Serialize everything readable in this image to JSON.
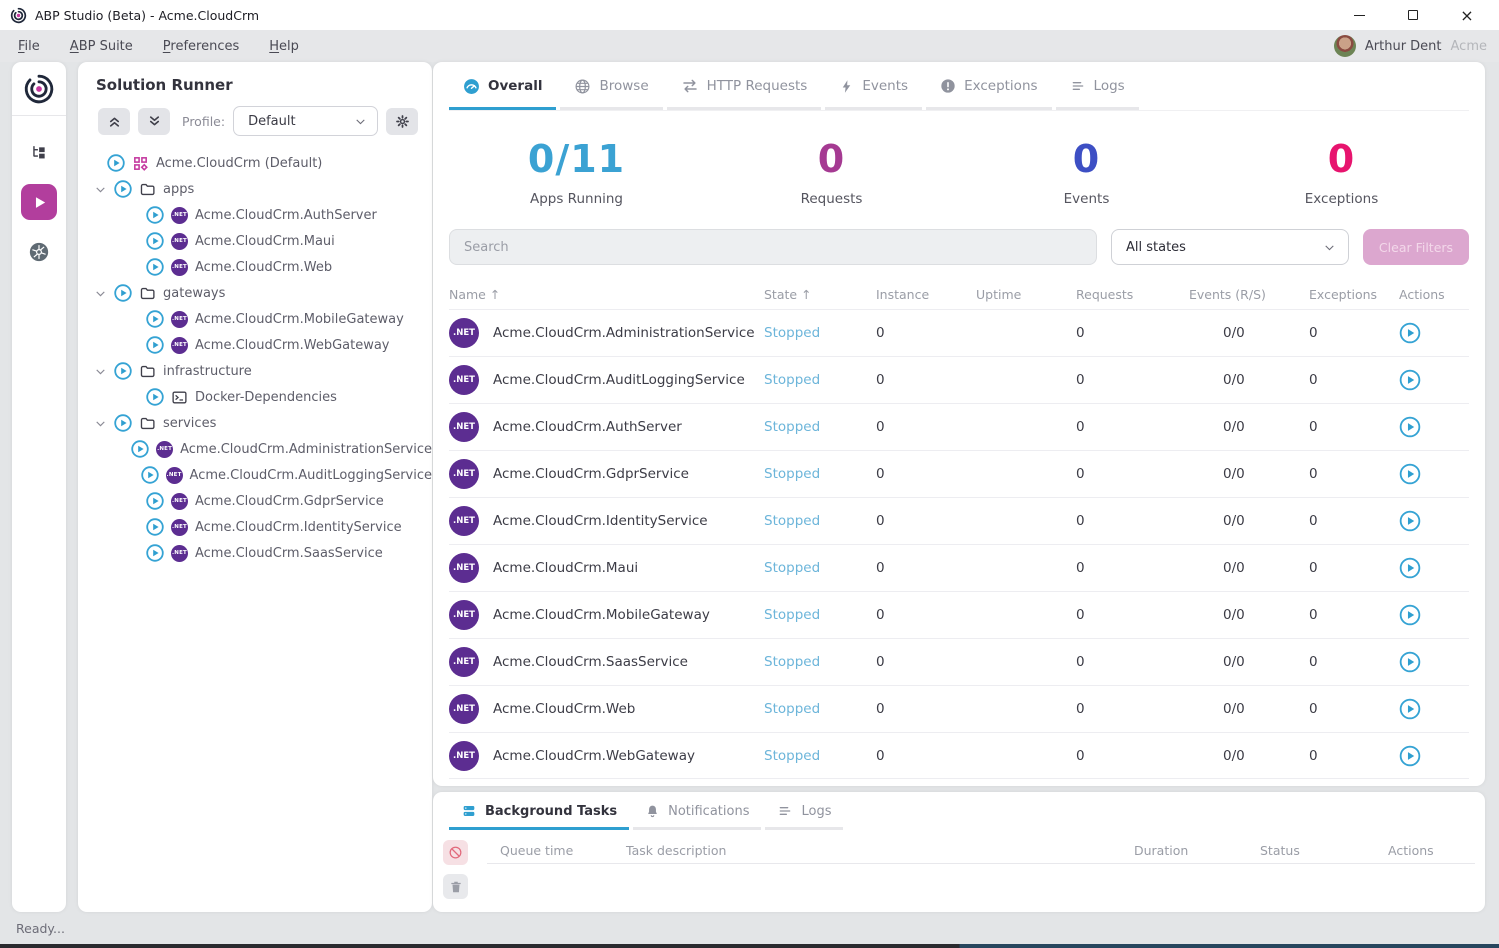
{
  "window": {
    "title": "ABP Studio (Beta) - Acme.CloudCrm"
  },
  "menu": {
    "items": [
      {
        "label": "File"
      },
      {
        "label": "ABP Suite"
      },
      {
        "label": "Preferences"
      },
      {
        "label": "Help"
      }
    ],
    "user": {
      "name": "Arthur Dent",
      "tenant": "Acme"
    }
  },
  "rail": {
    "items": [
      {
        "icon": "solution-explorer-icon",
        "active": false
      },
      {
        "icon": "solution-runner-icon",
        "active": true
      },
      {
        "icon": "kubernetes-icon",
        "active": false
      }
    ]
  },
  "solution_runner": {
    "title": "Solution Runner",
    "profile_label": "Profile:",
    "profile_value": "Default",
    "tree": [
      {
        "type": "root",
        "label": "Acme.CloudCrm (Default)"
      },
      {
        "type": "folder",
        "label": "apps",
        "expanded": true
      },
      {
        "type": "app",
        "label": "Acme.CloudCrm.AuthServer"
      },
      {
        "type": "app",
        "label": "Acme.CloudCrm.Maui"
      },
      {
        "type": "app",
        "label": "Acme.CloudCrm.Web"
      },
      {
        "type": "folder",
        "label": "gateways",
        "expanded": true
      },
      {
        "type": "app",
        "label": "Acme.CloudCrm.MobileGateway"
      },
      {
        "type": "app",
        "label": "Acme.CloudCrm.WebGateway"
      },
      {
        "type": "folder",
        "label": "infrastructure",
        "expanded": true
      },
      {
        "type": "docker",
        "label": "Docker-Dependencies"
      },
      {
        "type": "folder",
        "label": "services",
        "expanded": true
      },
      {
        "type": "app",
        "label": "Acme.CloudCrm.AdministrationService"
      },
      {
        "type": "app",
        "label": "Acme.CloudCrm.AuditLoggingService"
      },
      {
        "type": "app",
        "label": "Acme.CloudCrm.GdprService"
      },
      {
        "type": "app",
        "label": "Acme.CloudCrm.IdentityService"
      },
      {
        "type": "app",
        "label": "Acme.CloudCrm.SaasService"
      }
    ]
  },
  "main": {
    "tabs": [
      {
        "label": "Overall",
        "icon": "gauge-icon",
        "active": true
      },
      {
        "label": "Browse",
        "icon": "globe-icon",
        "active": false
      },
      {
        "label": "HTTP Requests",
        "icon": "arrows-icon",
        "active": false
      },
      {
        "label": "Events",
        "icon": "bolt-icon",
        "active": false
      },
      {
        "label": "Exceptions",
        "icon": "exclamation-icon",
        "active": false
      },
      {
        "label": "Logs",
        "icon": "lines-icon",
        "active": false
      }
    ],
    "stats": [
      {
        "value": "0/11",
        "label": "Apps Running",
        "color": "#3ba2d3"
      },
      {
        "value": "0",
        "label": "Requests",
        "color": "#a53a92"
      },
      {
        "value": "0",
        "label": "Events",
        "color": "#3d4fc4"
      },
      {
        "value": "0",
        "label": "Exceptions",
        "color": "#e7146e"
      }
    ],
    "search_placeholder": "Search",
    "state_filter_value": "All states",
    "clear_filters_label": "Clear Filters",
    "table": {
      "headers": {
        "name": "Name",
        "state": "State",
        "instance": "Instance",
        "uptime": "Uptime",
        "requests": "Requests",
        "events": "Events (R/S)",
        "exceptions": "Exceptions",
        "actions": "Actions"
      },
      "rows": [
        {
          "name": "Acme.CloudCrm.AdministrationService",
          "state": "Stopped",
          "instance": "0",
          "uptime": "",
          "requests": "0",
          "events": "0/0",
          "exceptions": "0"
        },
        {
          "name": "Acme.CloudCrm.AuditLoggingService",
          "state": "Stopped",
          "instance": "0",
          "uptime": "",
          "requests": "0",
          "events": "0/0",
          "exceptions": "0"
        },
        {
          "name": "Acme.CloudCrm.AuthServer",
          "state": "Stopped",
          "instance": "0",
          "uptime": "",
          "requests": "0",
          "events": "0/0",
          "exceptions": "0"
        },
        {
          "name": "Acme.CloudCrm.GdprService",
          "state": "Stopped",
          "instance": "0",
          "uptime": "",
          "requests": "0",
          "events": "0/0",
          "exceptions": "0"
        },
        {
          "name": "Acme.CloudCrm.IdentityService",
          "state": "Stopped",
          "instance": "0",
          "uptime": "",
          "requests": "0",
          "events": "0/0",
          "exceptions": "0"
        },
        {
          "name": "Acme.CloudCrm.Maui",
          "state": "Stopped",
          "instance": "0",
          "uptime": "",
          "requests": "0",
          "events": "0/0",
          "exceptions": "0"
        },
        {
          "name": "Acme.CloudCrm.MobileGateway",
          "state": "Stopped",
          "instance": "0",
          "uptime": "",
          "requests": "0",
          "events": "0/0",
          "exceptions": "0"
        },
        {
          "name": "Acme.CloudCrm.SaasService",
          "state": "Stopped",
          "instance": "0",
          "uptime": "",
          "requests": "0",
          "events": "0/0",
          "exceptions": "0"
        },
        {
          "name": "Acme.CloudCrm.Web",
          "state": "Stopped",
          "instance": "0",
          "uptime": "",
          "requests": "0",
          "events": "0/0",
          "exceptions": "0"
        },
        {
          "name": "Acme.CloudCrm.WebGateway",
          "state": "Stopped",
          "instance": "0",
          "uptime": "",
          "requests": "0",
          "events": "0/0",
          "exceptions": "0"
        }
      ]
    }
  },
  "bottom_panel": {
    "tabs": [
      {
        "label": "Background Tasks",
        "icon": "stacked-bars-icon",
        "active": true
      },
      {
        "label": "Notifications",
        "icon": "bell-icon",
        "active": false
      },
      {
        "label": "Logs",
        "icon": "lines-icon",
        "active": false
      }
    ],
    "headers": [
      "Queue time",
      "Task description",
      "Duration",
      "Status",
      "Actions"
    ]
  },
  "status_bar": {
    "text": "Ready..."
  },
  "colors": {
    "accent_blue": "#2f9fd0",
    "net_badge_purple": "#5c2d91",
    "runner_active_pink": "#b23e9d",
    "stopped_state": "#6cb5da",
    "clear_filters_bg": "#dca7cf"
  }
}
